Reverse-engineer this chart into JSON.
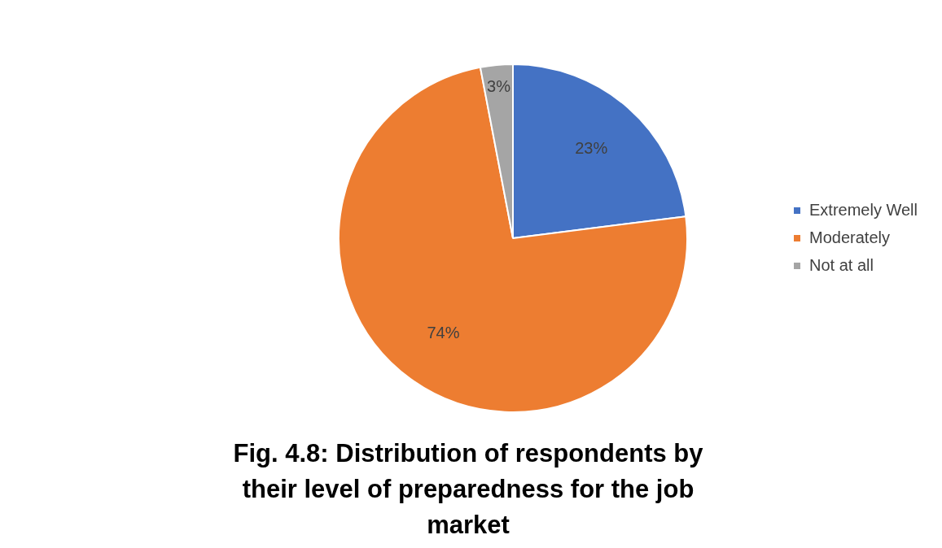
{
  "chart_data": {
    "type": "pie",
    "title": "Fig. 4.8: Distribution of respondents by their level of preparedness for the job market",
    "categories": [
      "Extremely Well",
      "Moderately",
      "Not at all"
    ],
    "values": [
      23,
      74,
      3
    ],
    "colors": [
      "#4472c4",
      "#ed7d31",
      "#a5a5a5"
    ],
    "value_labels": [
      "23%",
      "74%",
      "3%"
    ],
    "legend": "right"
  }
}
